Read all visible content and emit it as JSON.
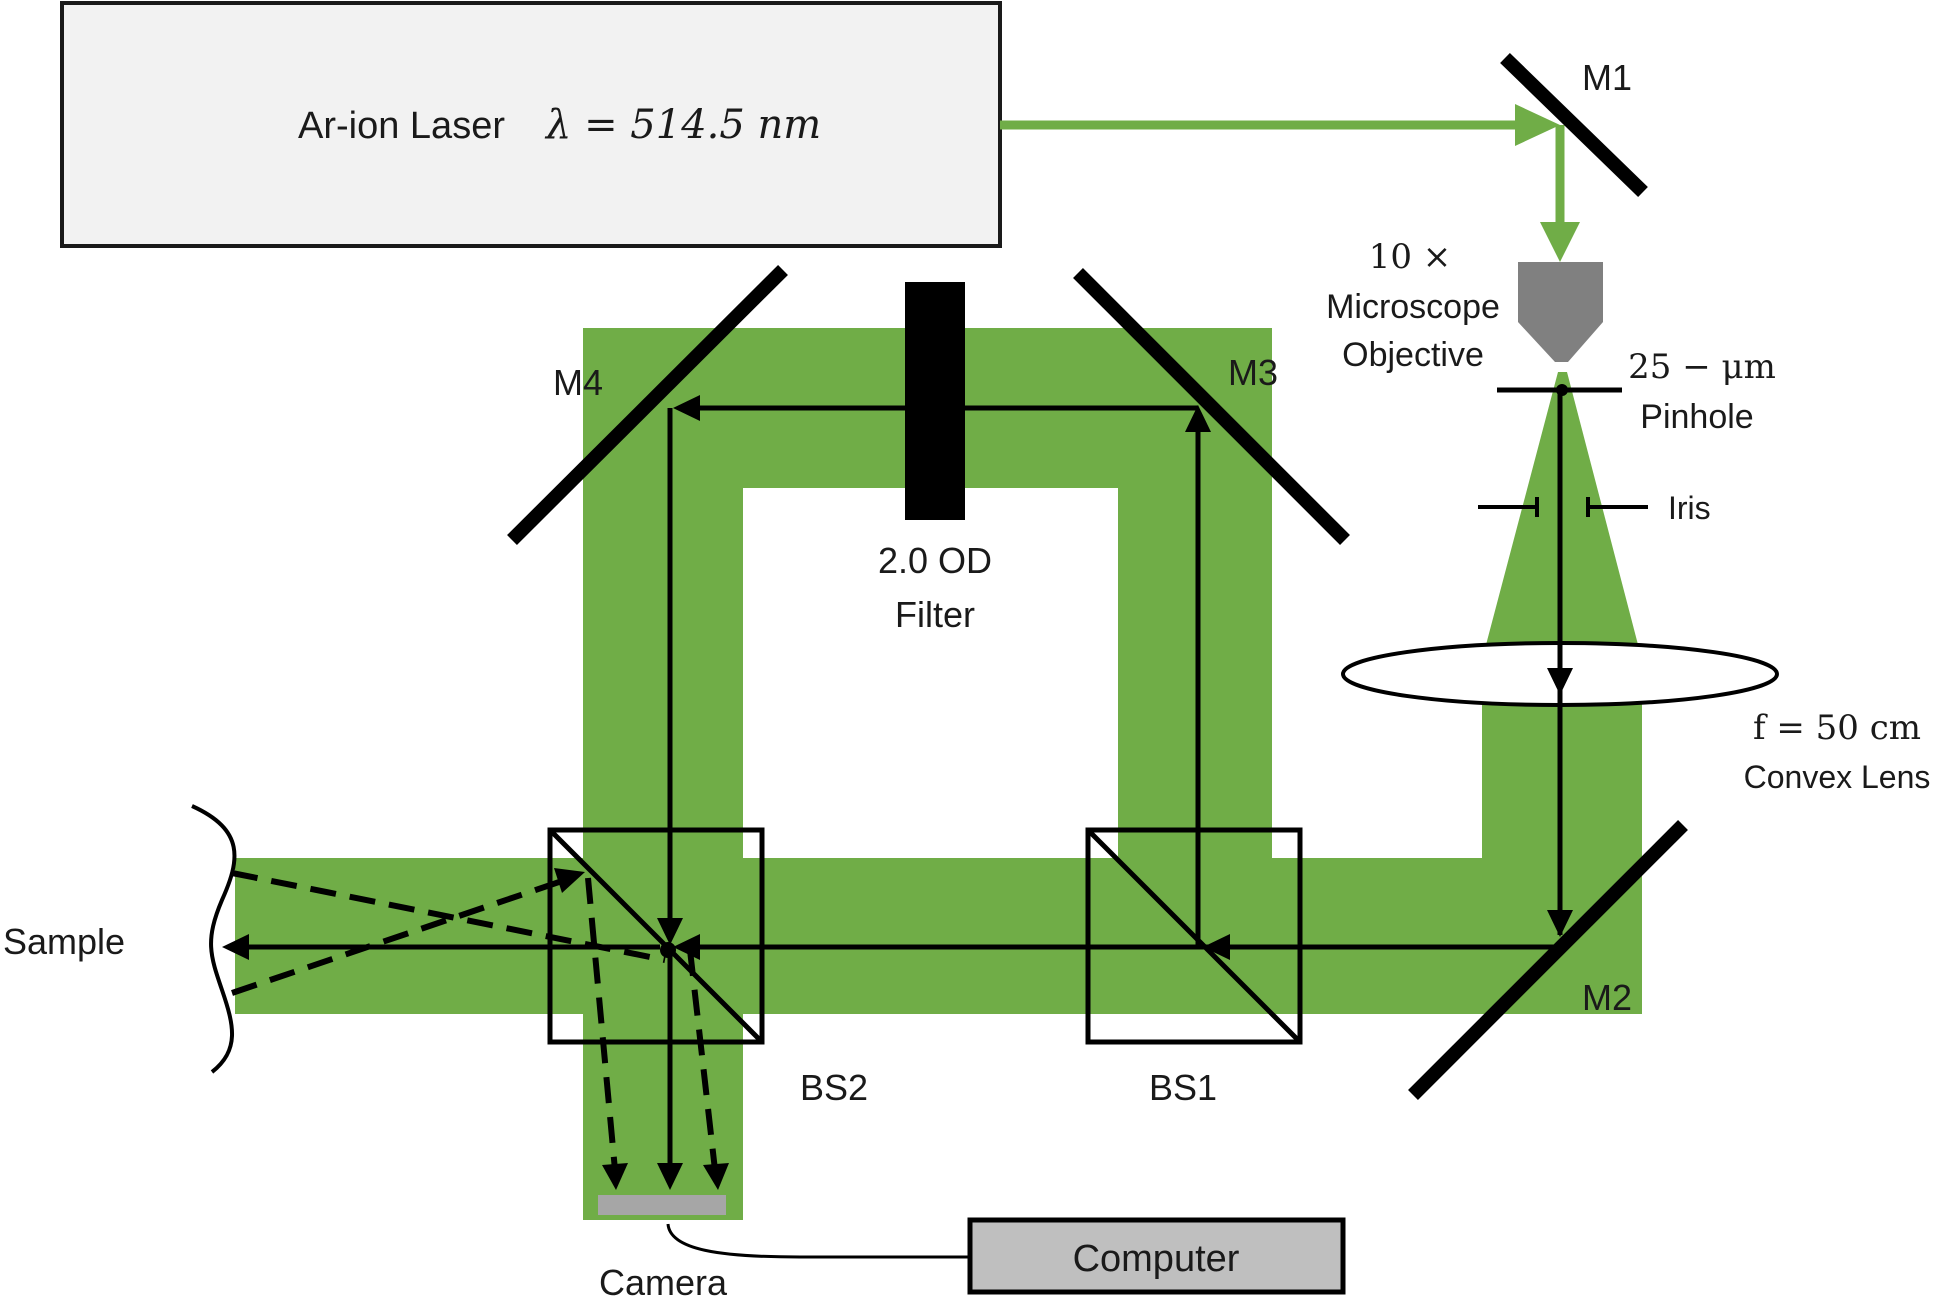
{
  "laser": {
    "label": "Ar-ion Laser",
    "wavelength": "λ = 514.5 nm"
  },
  "mirrors": {
    "m1": "M1",
    "m2": "M2",
    "m3": "M3",
    "m4": "M4"
  },
  "objective": {
    "line1": "10 ×",
    "line2": "Microscope",
    "line3": "Objective"
  },
  "pinhole": {
    "line1": "25 − μm",
    "line2": "Pinhole"
  },
  "iris": "Iris",
  "lens": {
    "line1": "f = 50 cm",
    "line2": "Convex Lens"
  },
  "filter": {
    "line1": "2.0 OD",
    "line2": "Filter"
  },
  "beamsplitters": {
    "bs1": "BS1",
    "bs2": "BS2"
  },
  "sample": "Sample",
  "camera": "Camera",
  "computer": "Computer",
  "colors": {
    "beam": "#70ad47",
    "objective": "#808080",
    "camera": "#a6a6a6",
    "computer": "#bfbfbf",
    "laser_box": "#f2f2f2"
  }
}
